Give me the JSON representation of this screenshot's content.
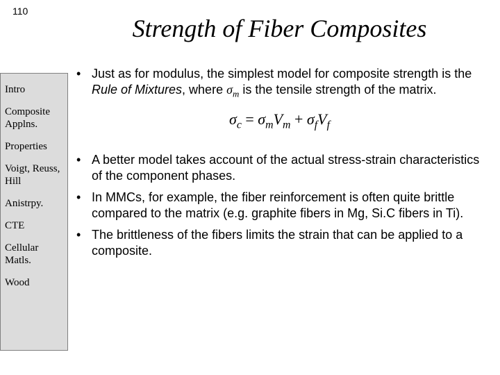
{
  "page_number": "110",
  "title": "Strength of Fiber Composites",
  "sidebar": {
    "items": [
      "Intro",
      "Composite Applns.",
      "Properties",
      "Voigt, Reuss, Hill",
      "Anistrpy.",
      "CTE",
      "Cellular Matls.",
      "Wood"
    ]
  },
  "body": {
    "bullet1_a": "Just as for modulus, the simplest model for composite strength is the ",
    "bullet1_b": "Rule of Mixtures",
    "bullet1_c": ", where ",
    "bullet1_d": " is the tensile strength of the matrix.",
    "eq": {
      "sigma": "σ",
      "c": "c",
      "m": "m",
      "f": "f",
      "V": "V",
      "eq": " = ",
      "plus": " + "
    },
    "bullet2": "A better model takes account of the actual stress-strain characteristics of the component phases.",
    "bullet3": "In MMCs, for example, the fiber reinforcement is often quite brittle compared to the matrix (e.g. graphite fibers in Mg, Si.C fibers in Ti).",
    "bullet4": "The brittleness of the fibers limits the strain that can be applied to a composite."
  }
}
